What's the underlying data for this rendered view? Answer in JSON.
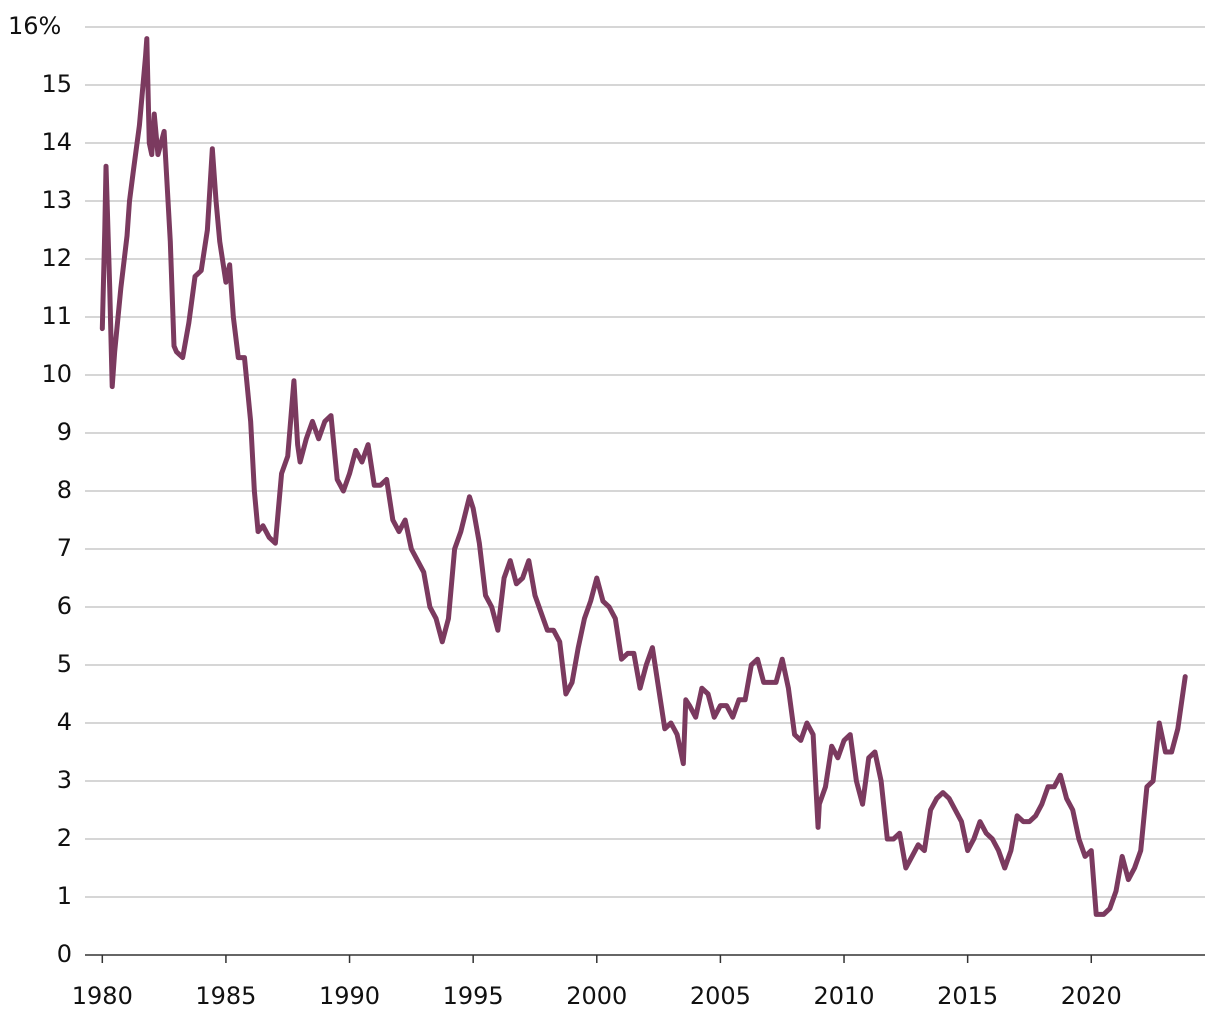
{
  "chart_data": {
    "type": "line",
    "color": "#7b3a5f",
    "xlim": [
      1979.3,
      2024.6
    ],
    "ylim": [
      0,
      16
    ],
    "xticks": [
      1980,
      1985,
      1990,
      1995,
      2000,
      2005,
      2010,
      2015,
      2020
    ],
    "yticks": [
      0,
      1,
      2,
      3,
      4,
      5,
      6,
      7,
      8,
      9,
      10,
      11,
      12,
      13,
      14,
      {
        "value": 16,
        "label": "16%"
      },
      15
    ],
    "grid": true,
    "x": [
      1980.0,
      1980.1,
      1980.15,
      1980.3,
      1980.4,
      1980.5,
      1980.75,
      1981.0,
      1981.1,
      1981.25,
      1981.5,
      1981.75,
      1981.8,
      1981.9,
      1982.0,
      1982.1,
      1982.25,
      1982.5,
      1982.75,
      1982.9,
      1983.0,
      1983.25,
      1983.5,
      1983.75,
      1984.0,
      1984.25,
      1984.45,
      1984.6,
      1984.75,
      1985.0,
      1985.15,
      1985.3,
      1985.5,
      1985.75,
      1986.0,
      1986.15,
      1986.3,
      1986.5,
      1986.75,
      1987.0,
      1987.25,
      1987.5,
      1987.75,
      1987.9,
      1988.0,
      1988.25,
      1988.5,
      1988.75,
      1989.0,
      1989.25,
      1989.5,
      1989.75,
      1990.0,
      1990.25,
      1990.5,
      1990.75,
      1991.0,
      1991.25,
      1991.5,
      1991.75,
      1992.0,
      1992.25,
      1992.5,
      1992.75,
      1993.0,
      1993.25,
      1993.5,
      1993.75,
      1994.0,
      1994.25,
      1994.5,
      1994.85,
      1995.0,
      1995.25,
      1995.5,
      1995.75,
      1996.0,
      1996.25,
      1996.5,
      1996.75,
      1997.0,
      1997.25,
      1997.5,
      1997.75,
      1998.0,
      1998.25,
      1998.5,
      1998.75,
      1999.0,
      1999.25,
      1999.5,
      1999.75,
      2000.0,
      2000.25,
      2000.5,
      2000.75,
      2001.0,
      2001.25,
      2001.5,
      2001.75,
      2002.0,
      2002.25,
      2002.5,
      2002.75,
      2003.0,
      2003.25,
      2003.5,
      2003.6,
      2003.75,
      2004.0,
      2004.25,
      2004.5,
      2004.75,
      2005.0,
      2005.25,
      2005.5,
      2005.75,
      2006.0,
      2006.25,
      2006.5,
      2006.75,
      2007.0,
      2007.25,
      2007.5,
      2007.75,
      2008.0,
      2008.25,
      2008.5,
      2008.75,
      2008.95,
      2009.0,
      2009.25,
      2009.5,
      2009.75,
      2010.0,
      2010.25,
      2010.5,
      2010.75,
      2011.0,
      2011.25,
      2011.5,
      2011.75,
      2012.0,
      2012.25,
      2012.5,
      2012.75,
      2013.0,
      2013.25,
      2013.5,
      2013.75,
      2014.0,
      2014.25,
      2014.5,
      2014.75,
      2015.0,
      2015.25,
      2015.5,
      2015.75,
      2016.0,
      2016.25,
      2016.5,
      2016.75,
      2017.0,
      2017.25,
      2017.5,
      2017.75,
      2018.0,
      2018.25,
      2018.5,
      2018.75,
      2019.0,
      2019.25,
      2019.5,
      2019.75,
      2020.0,
      2020.2,
      2020.5,
      2020.75,
      2021.0,
      2021.25,
      2021.5,
      2021.75,
      2022.0,
      2022.25,
      2022.5,
      2022.75,
      2023.0,
      2023.25,
      2023.5,
      2023.8
    ],
    "values": [
      10.8,
      12.5,
      13.6,
      11.5,
      9.8,
      10.4,
      11.5,
      12.4,
      13.0,
      13.5,
      14.3,
      15.5,
      15.8,
      14.0,
      13.8,
      14.5,
      13.8,
      14.2,
      12.3,
      10.5,
      10.4,
      10.3,
      10.9,
      11.7,
      11.8,
      12.5,
      13.9,
      13.0,
      12.3,
      11.6,
      11.9,
      11.0,
      10.3,
      10.3,
      9.2,
      8.0,
      7.3,
      7.4,
      7.2,
      7.1,
      8.3,
      8.6,
      9.9,
      8.8,
      8.5,
      8.9,
      9.2,
      8.9,
      9.2,
      9.3,
      8.2,
      8.0,
      8.3,
      8.7,
      8.5,
      8.8,
      8.1,
      8.1,
      8.2,
      7.5,
      7.3,
      7.5,
      7.0,
      6.8,
      6.6,
      6.0,
      5.8,
      5.4,
      5.8,
      7.0,
      7.3,
      7.9,
      7.7,
      7.1,
      6.2,
      6.0,
      5.6,
      6.5,
      6.8,
      6.4,
      6.5,
      6.8,
      6.2,
      5.9,
      5.6,
      5.6,
      5.4,
      4.5,
      4.7,
      5.3,
      5.8,
      6.1,
      6.5,
      6.1,
      6.0,
      5.8,
      5.1,
      5.2,
      5.2,
      4.6,
      5.0,
      5.3,
      4.6,
      3.9,
      4.0,
      3.8,
      3.3,
      4.4,
      4.3,
      4.1,
      4.6,
      4.5,
      4.1,
      4.3,
      4.3,
      4.1,
      4.4,
      4.4,
      5.0,
      5.1,
      4.7,
      4.7,
      4.7,
      5.1,
      4.6,
      3.8,
      3.7,
      4.0,
      3.8,
      2.2,
      2.6,
      2.9,
      3.6,
      3.4,
      3.7,
      3.8,
      3.0,
      2.6,
      3.4,
      3.5,
      3.0,
      2.0,
      2.0,
      2.1,
      1.5,
      1.7,
      1.9,
      1.8,
      2.5,
      2.7,
      2.8,
      2.7,
      2.5,
      2.3,
      1.8,
      2.0,
      2.3,
      2.1,
      2.0,
      1.8,
      1.5,
      1.8,
      2.4,
      2.3,
      2.3,
      2.4,
      2.6,
      2.9,
      2.9,
      3.1,
      2.7,
      2.5,
      2.0,
      1.7,
      1.8,
      0.7,
      0.7,
      0.8,
      1.1,
      1.7,
      1.3,
      1.5,
      1.8,
      2.9,
      3.0,
      4.0,
      3.5,
      3.5,
      3.9,
      4.8
    ]
  }
}
